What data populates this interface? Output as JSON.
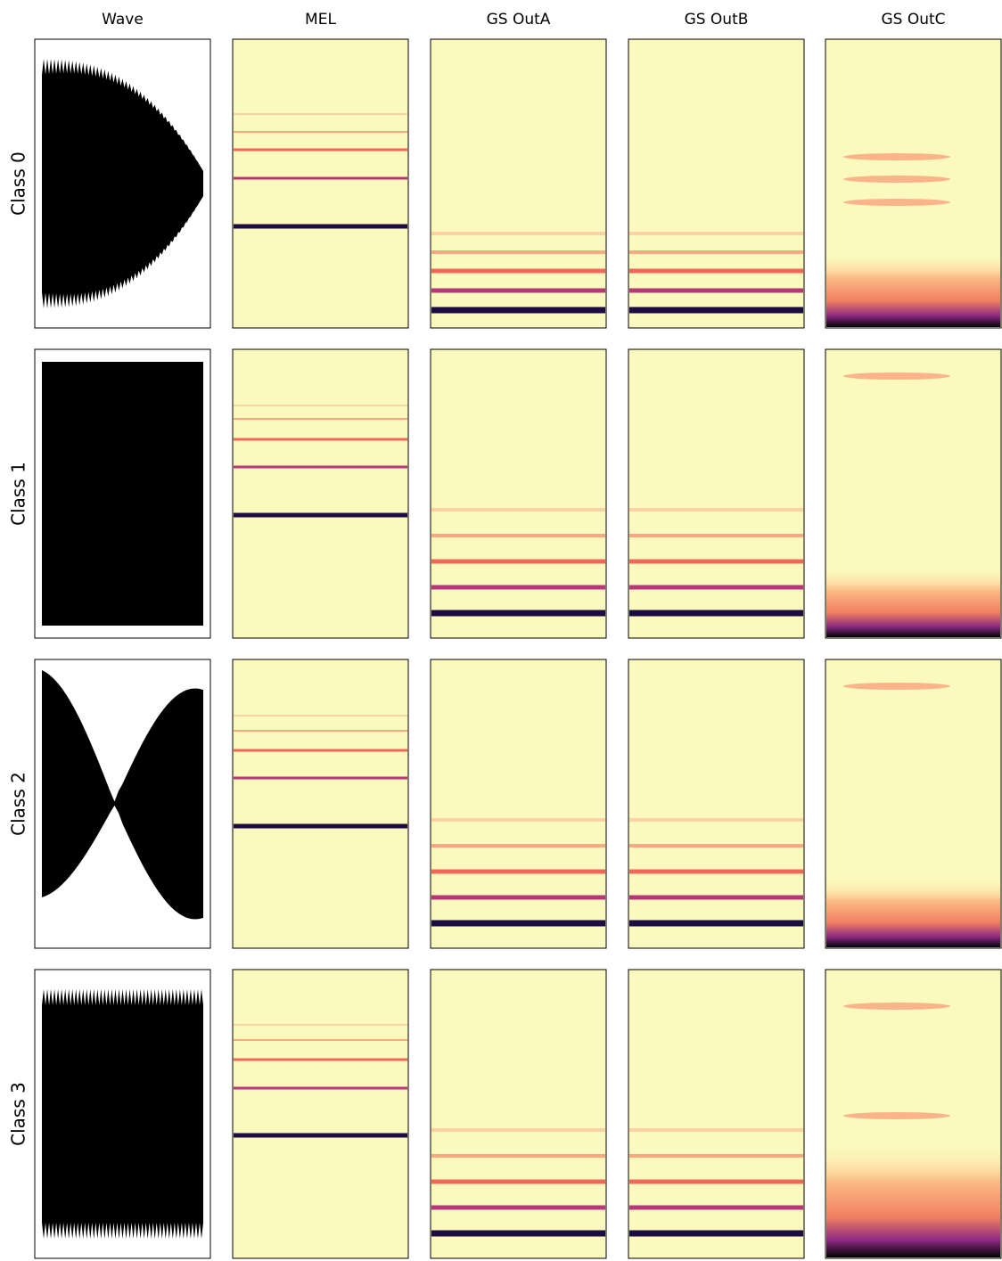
{
  "columns": [
    "Wave",
    "MEL",
    "GS OutA",
    "GS OutB",
    "GS OutC"
  ],
  "rows": [
    "Class 0",
    "Class 1",
    "Class 2",
    "Class 3"
  ]
}
